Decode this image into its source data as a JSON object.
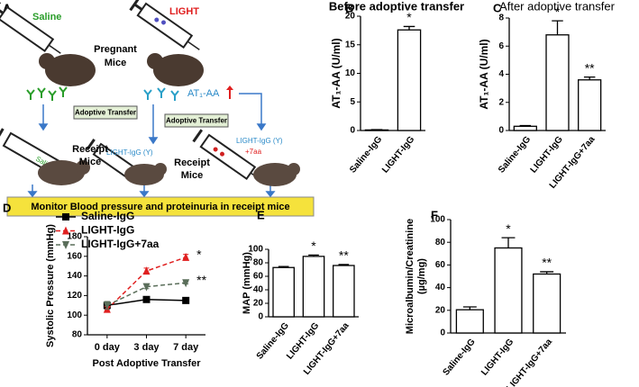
{
  "diagram": {
    "panel_label": "A",
    "saline": "Saline",
    "light": "LIGHT",
    "pregnant": "Pregnant",
    "mice": "Mice",
    "at1aa": "AT₁-AA",
    "transfer_1": "Adoptive Transfer",
    "transfer_2": "Adoptive Transfer",
    "saline_igg": "Saline-IgG (Y)",
    "light_igg_1": "LIGHT-IgG (Y)",
    "light_igg_2": "LIGHT-IgG (Y)",
    "plus_7aa": "+7aa",
    "receipt_1": "Receipt",
    "receipt_mice_1": "Mice",
    "receipt_2": "Receipt",
    "receipt_mice_2": "Mice",
    "monitor": "Monitor Blood pressure and proteinuria in receipt mice"
  },
  "chart_data": [
    {
      "type": "bar",
      "panel_label": "B",
      "title": "Before adoptive transfer",
      "ylabel": "AT₁-AA (U/ml)",
      "categories": [
        "Saline-IgG",
        "LIGHT-IgG"
      ],
      "values": [
        0.1,
        17.6
      ],
      "errors": [
        0.05,
        0.6
      ],
      "significance": [
        null,
        "*"
      ],
      "ylim": [
        0,
        20
      ],
      "yticks": [
        0,
        5,
        10,
        15,
        20
      ],
      "title_bold": true
    },
    {
      "type": "bar",
      "panel_label": "C",
      "title": "After adoptive transfer",
      "ylabel": "AT₁-AA (U/ml)",
      "categories": [
        "Saline-IgG",
        "LIGHT-IgG",
        "LIGHT-IgG+7aa"
      ],
      "values": [
        0.3,
        6.8,
        3.6
      ],
      "errors": [
        0.05,
        1.0,
        0.2
      ],
      "significance": [
        null,
        "*",
        "**"
      ],
      "ylim": [
        0,
        8
      ],
      "yticks": [
        0,
        2,
        4,
        6,
        8
      ],
      "title_bold": false
    },
    {
      "type": "line",
      "panel_label": "D",
      "ylabel": "Systolic Pressure (mmHg)",
      "xlabel": "Post Adoptive Transfer",
      "categories": [
        "0 day",
        "3 day",
        "7 day"
      ],
      "ylim": [
        80,
        180
      ],
      "yticks": [
        80,
        100,
        120,
        140,
        160,
        180
      ],
      "series": [
        {
          "name": "Saline-IgG",
          "color": "#000000",
          "dashed": false,
          "marker": "square",
          "values": [
            110,
            116,
            115
          ],
          "errors": [
            4,
            3,
            2
          ]
        },
        {
          "name": "LIGHT-IgG",
          "color": "#e02020",
          "dashed": true,
          "marker": "triangle-up",
          "values": [
            106,
            145,
            159
          ],
          "errors": [
            3,
            3,
            3
          ],
          "significance": "*"
        },
        {
          "name": "LIGHT-IgG+7aa",
          "color": "#5a6e5a",
          "dashed": true,
          "marker": "triangle-down",
          "values": [
            110,
            129,
            133
          ],
          "errors": [
            4,
            2,
            1
          ],
          "significance": "**"
        }
      ]
    },
    {
      "type": "bar",
      "panel_label": "E",
      "ylabel": "MAP (mmHg)",
      "categories": [
        "Saline-IgG",
        "LIGHT-IgG",
        "LIGHT-IgG+7aa"
      ],
      "values": [
        73,
        89.5,
        76
      ],
      "errors": [
        1.5,
        2,
        1.5
      ],
      "significance": [
        null,
        "*",
        "**"
      ],
      "ylim": [
        0,
        100
      ],
      "yticks": [
        0,
        20,
        40,
        60,
        80,
        100
      ]
    },
    {
      "type": "bar",
      "panel_label": "F",
      "ylabel": [
        "Microalbumin/Creatinine",
        "(µg/mg)"
      ],
      "categories": [
        "Saline-IgG",
        "LIGHT-IgG",
        "LIGHT-IgG+7aa"
      ],
      "values": [
        20.5,
        75,
        52
      ],
      "errors": [
        2.5,
        9,
        2
      ],
      "significance": [
        null,
        "*",
        "**"
      ],
      "ylim": [
        0,
        100
      ],
      "yticks": [
        0,
        20,
        40,
        60,
        80,
        100
      ]
    }
  ]
}
